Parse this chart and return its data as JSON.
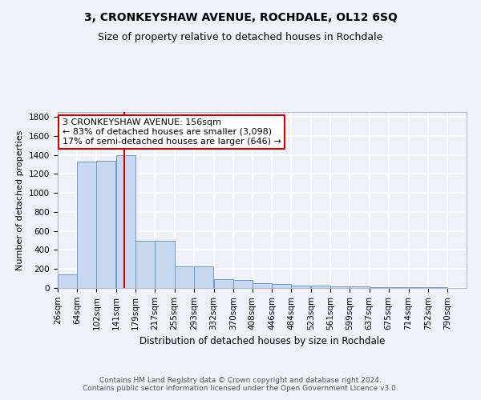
{
  "title": "3, CRONKEYSHAW AVENUE, ROCHDALE, OL12 6SQ",
  "subtitle": "Size of property relative to detached houses in Rochdale",
  "xlabel": "Distribution of detached houses by size in Rochdale",
  "ylabel": "Number of detached properties",
  "bin_edges": [
    26,
    64,
    102,
    141,
    179,
    217,
    255,
    293,
    332,
    370,
    408,
    446,
    484,
    523,
    561,
    599,
    637,
    675,
    714,
    752,
    790
  ],
  "bar_heights": [
    140,
    1330,
    1335,
    1400,
    500,
    500,
    230,
    230,
    90,
    80,
    50,
    45,
    25,
    25,
    15,
    15,
    10,
    10,
    10,
    10
  ],
  "bar_color": "#c8d8f0",
  "bar_edge_color": "#6699cc",
  "background_color": "#eef2f8",
  "grid_color": "#ffffff",
  "red_line_x": 156,
  "red_line_color": "#cc0000",
  "annotation_line1": "3 CRONKEYSHAW AVENUE: 156sqm",
  "annotation_line2": "← 83% of detached houses are smaller (3,098)",
  "annotation_line3": "17% of semi-detached houses are larger (646) →",
  "annotation_box_edge": "#cc0000",
  "annotation_box_face": "#ffffff",
  "ylim": [
    0,
    1850
  ],
  "yticks": [
    0,
    200,
    400,
    600,
    800,
    1000,
    1200,
    1400,
    1600,
    1800
  ],
  "footer_text": "Contains HM Land Registry data © Crown copyright and database right 2024.\nContains public sector information licensed under the Open Government Licence v3.0.",
  "title_fontsize": 10,
  "subtitle_fontsize": 9,
  "xlabel_fontsize": 8.5,
  "ylabel_fontsize": 8,
  "tick_fontsize": 7.5,
  "footer_fontsize": 6.5,
  "annot_fontsize": 8
}
